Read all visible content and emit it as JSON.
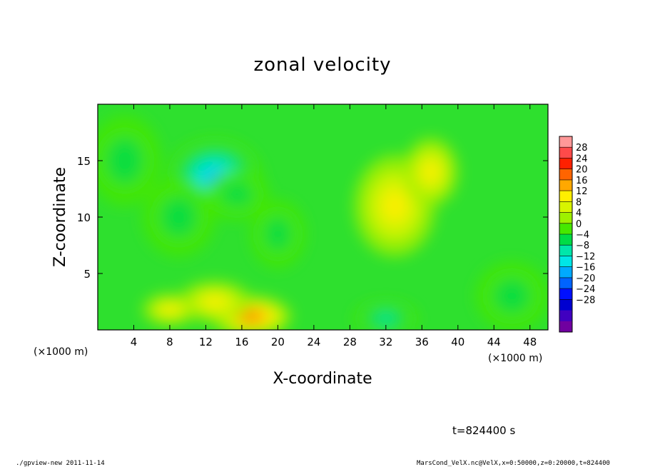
{
  "chart_data": {
    "type": "heatmap",
    "title": "zonal velocity",
    "xlabel": "X-coordinate",
    "ylabel": "Z-coordinate",
    "x_unit": "(×1000 m)",
    "y_unit": "(×1000 m)",
    "xlim": [
      0,
      50
    ],
    "ylim": [
      0,
      20
    ],
    "x_ticks": [
      "4",
      "8",
      "12",
      "16",
      "20",
      "24",
      "28",
      "32",
      "36",
      "40",
      "44",
      "48"
    ],
    "y_ticks": [
      "5",
      "10",
      "15"
    ],
    "colorbar_labels": [
      "28",
      "24",
      "20",
      "16",
      "12",
      "8",
      "4",
      "0",
      "−4",
      "−8",
      "−12",
      "−16",
      "−20",
      "−24",
      "−28"
    ],
    "colorbar_colors": [
      "#ff9898",
      "#ff4a4a",
      "#ff2000",
      "#ff6400",
      "#ffa800",
      "#ffee00",
      "#d8f400",
      "#9ef000",
      "#46e800",
      "#00dc46",
      "#00e6aa",
      "#00e6e6",
      "#00aaff",
      "#0064ff",
      "#0010ff",
      "#0000d0",
      "#4000c0",
      "#7000a0"
    ],
    "field_blobs": [
      {
        "x": 13,
        "z": 13.5,
        "value": -14,
        "sx": 5.2,
        "sz": 3.4
      },
      {
        "x": 15.5,
        "z": 12,
        "value": -5,
        "sx": 3.5,
        "sz": 2.2
      },
      {
        "x": 9,
        "z": 10,
        "value": -5,
        "sx": 4,
        "sz": 3.5
      },
      {
        "x": 20,
        "z": 8.5,
        "value": -4,
        "sx": 3,
        "sz": 3
      },
      {
        "x": 17,
        "z": 1.2,
        "value": 14,
        "sx": 4.5,
        "sz": 1.8
      },
      {
        "x": 13,
        "z": 2.5,
        "value": 6,
        "sx": 4,
        "sz": 1.8
      },
      {
        "x": 8,
        "z": 1.8,
        "value": 6,
        "sx": 3,
        "sz": 1.4
      },
      {
        "x": 33,
        "z": 11,
        "value": 9,
        "sx": 4.5,
        "sz": 4.5
      },
      {
        "x": 37,
        "z": 14,
        "value": 6,
        "sx": 3,
        "sz": 3
      },
      {
        "x": 32,
        "z": 1,
        "value": -9,
        "sx": 3.5,
        "sz": 1.5
      },
      {
        "x": 3,
        "z": 15,
        "value": -3,
        "sx": 4,
        "sz": 4
      },
      {
        "x": 46,
        "z": 3,
        "value": -2,
        "sx": 4,
        "sz": 3
      }
    ],
    "time_label": "t=824400 s"
  },
  "footer": {
    "left": "./gpview-new  2011-11-14",
    "right": "MarsCond_VelX.nc@VelX,x=0:50000,z=0:20000,t=824400"
  }
}
